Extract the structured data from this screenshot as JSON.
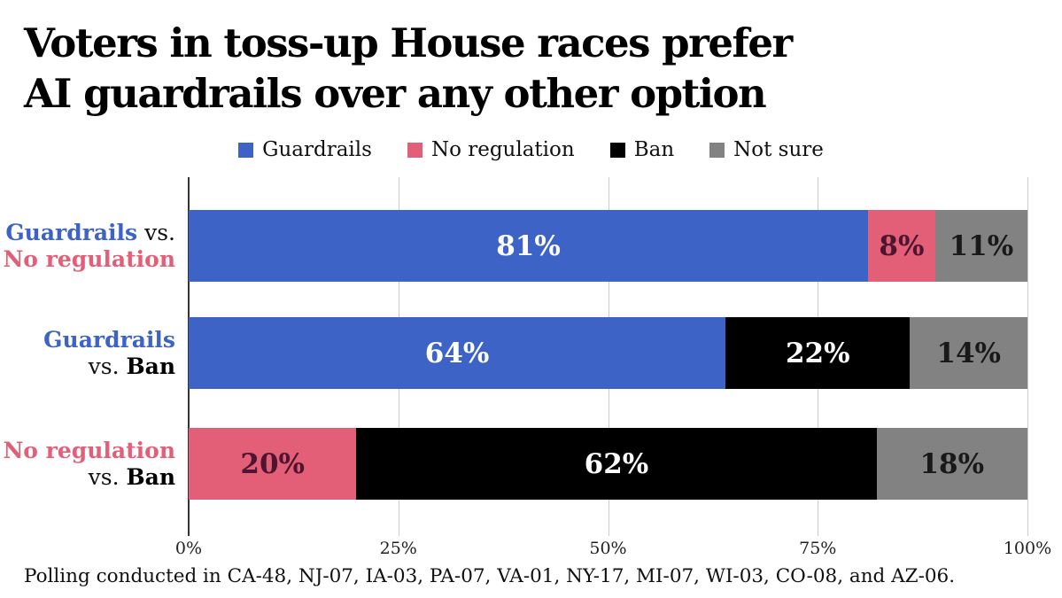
{
  "page": {
    "title_line1": "Voters in toss-up House races prefer",
    "title_line2": "AI guardrails over any other option",
    "footnote": "Polling conducted in CA-48, NJ-07, IA-03, PA-07, VA-01, NY-17, MI-07, WI-03, CO-08, and AZ-06."
  },
  "chart_data": {
    "type": "bar",
    "orientation": "horizontal",
    "stacked": true,
    "title": "Voters in toss-up House races prefer AI guardrails over any other option",
    "legend_position": "top",
    "grid": true,
    "legend": [
      {
        "key": "guardrails",
        "label": "Guardrails",
        "color": "#3c63c5"
      },
      {
        "key": "no_regulation",
        "label": "No regulation",
        "color": "#e35f78"
      },
      {
        "key": "ban",
        "label": "Ban",
        "color": "#000000"
      },
      {
        "key": "not_sure",
        "label": "Not sure",
        "color": "#828282"
      }
    ],
    "rows": [
      {
        "name": "guardrails-vs-no-regulation",
        "label_lines": [
          [
            {
              "text": "Guardrails",
              "style": "guardrails"
            },
            {
              "text": " vs.",
              "style": "plain"
            }
          ],
          [
            {
              "text": "No regulation",
              "style": "no_regulation"
            }
          ]
        ],
        "segments": [
          {
            "key": "guardrails",
            "value": 81,
            "label": "81%"
          },
          {
            "key": "no_regulation",
            "value": 8,
            "label": "8%"
          },
          {
            "key": "not_sure",
            "value": 11,
            "label": "11%"
          }
        ]
      },
      {
        "name": "guardrails-vs-ban",
        "label_lines": [
          [
            {
              "text": "Guardrails",
              "style": "guardrails"
            }
          ],
          [
            {
              "text": "vs. ",
              "style": "plain"
            },
            {
              "text": "Ban",
              "style": "ban"
            }
          ]
        ],
        "segments": [
          {
            "key": "guardrails",
            "value": 64,
            "label": "64%"
          },
          {
            "key": "ban",
            "value": 22,
            "label": "22%"
          },
          {
            "key": "not_sure",
            "value": 14,
            "label": "14%"
          }
        ]
      },
      {
        "name": "no-regulation-vs-ban",
        "label_lines": [
          [
            {
              "text": "No regulation",
              "style": "no_regulation"
            }
          ],
          [
            {
              "text": "vs. ",
              "style": "plain"
            },
            {
              "text": "Ban",
              "style": "ban"
            }
          ]
        ],
        "segments": [
          {
            "key": "no_regulation",
            "value": 20,
            "label": "20%"
          },
          {
            "key": "ban",
            "value": 62,
            "label": "62%"
          },
          {
            "key": "not_sure",
            "value": 18,
            "label": "18%"
          }
        ]
      }
    ],
    "x_axis": {
      "ticks": [
        "0%",
        "25%",
        "50%",
        "75%",
        "100%"
      ],
      "min": 0,
      "max": 100
    },
    "segment_text_colors": {
      "guardrails": "#ffffff",
      "no_regulation": "#4d1530",
      "ban": "#ffffff",
      "not_sure": "#191919"
    },
    "label_colors": {
      "guardrails": "#3c63c5",
      "no_regulation": "#e35f78",
      "ban": "#000000",
      "plain": "#111111"
    }
  }
}
